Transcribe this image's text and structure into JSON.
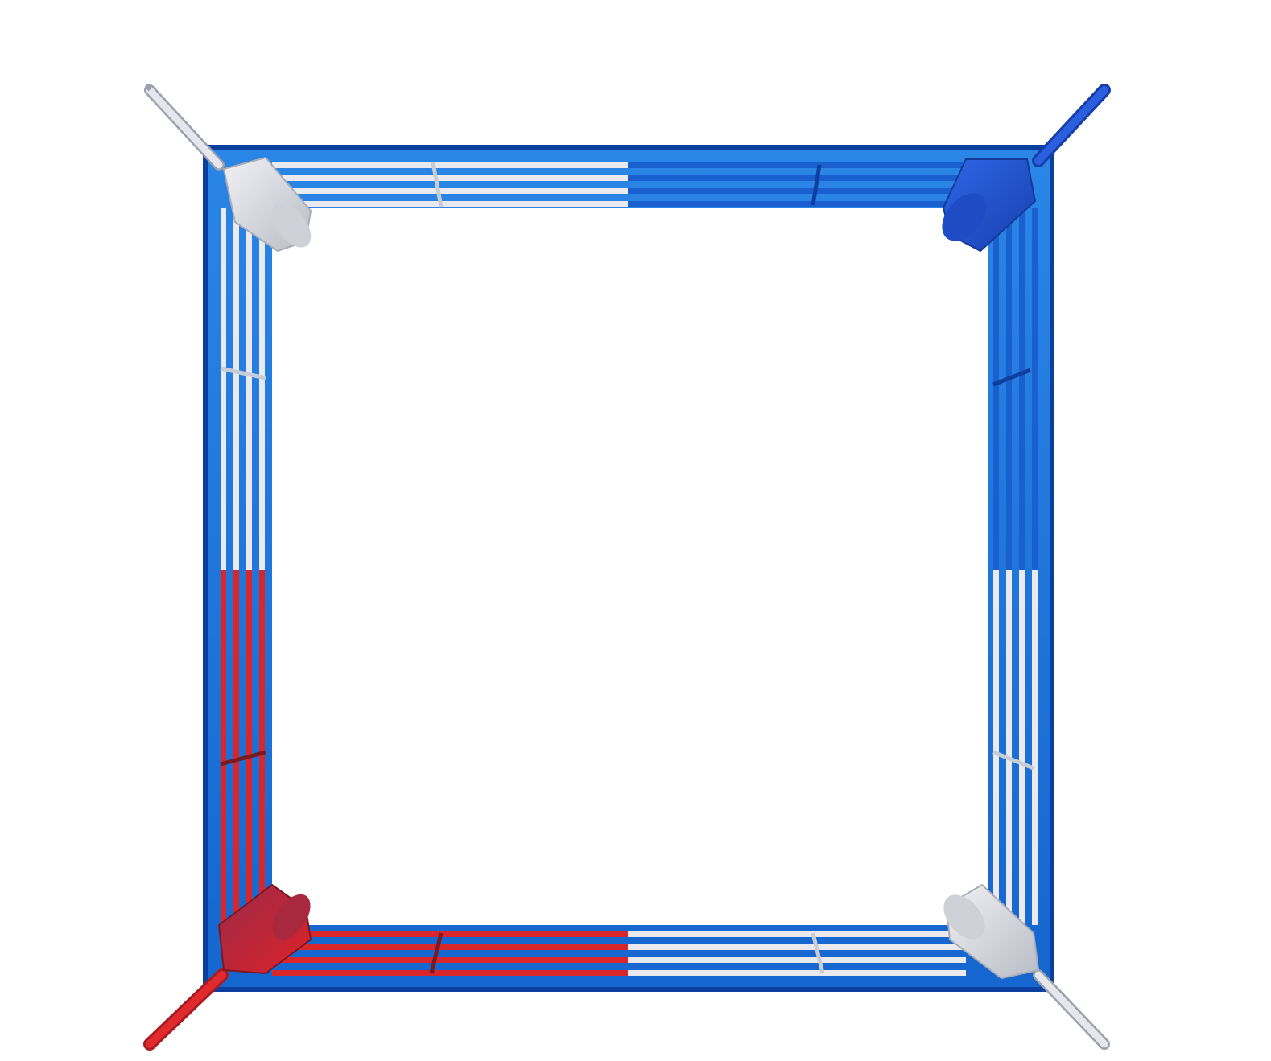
{
  "scene": {
    "subject": "",
    "corners": [
      {
        "position": "top-left",
        "color": "white"
      },
      {
        "position": "top-right",
        "color": "blue"
      },
      {
        "position": "bottom-left",
        "color": "red"
      },
      {
        "position": "bottom-right",
        "color": "white"
      }
    ],
    "colors": {
      "apron": "#1e73d8",
      "apron_edge": "#0b3f9e",
      "rope_blue": "#1a5fd0",
      "rope_white": "#e9e9ee",
      "rope_red": "#d8262a",
      "pad_white": "#d9d9df",
      "pad_blue": "#1b4fd0",
      "pad_red": "#b3232e",
      "canvas": "#ffffff"
    }
  }
}
